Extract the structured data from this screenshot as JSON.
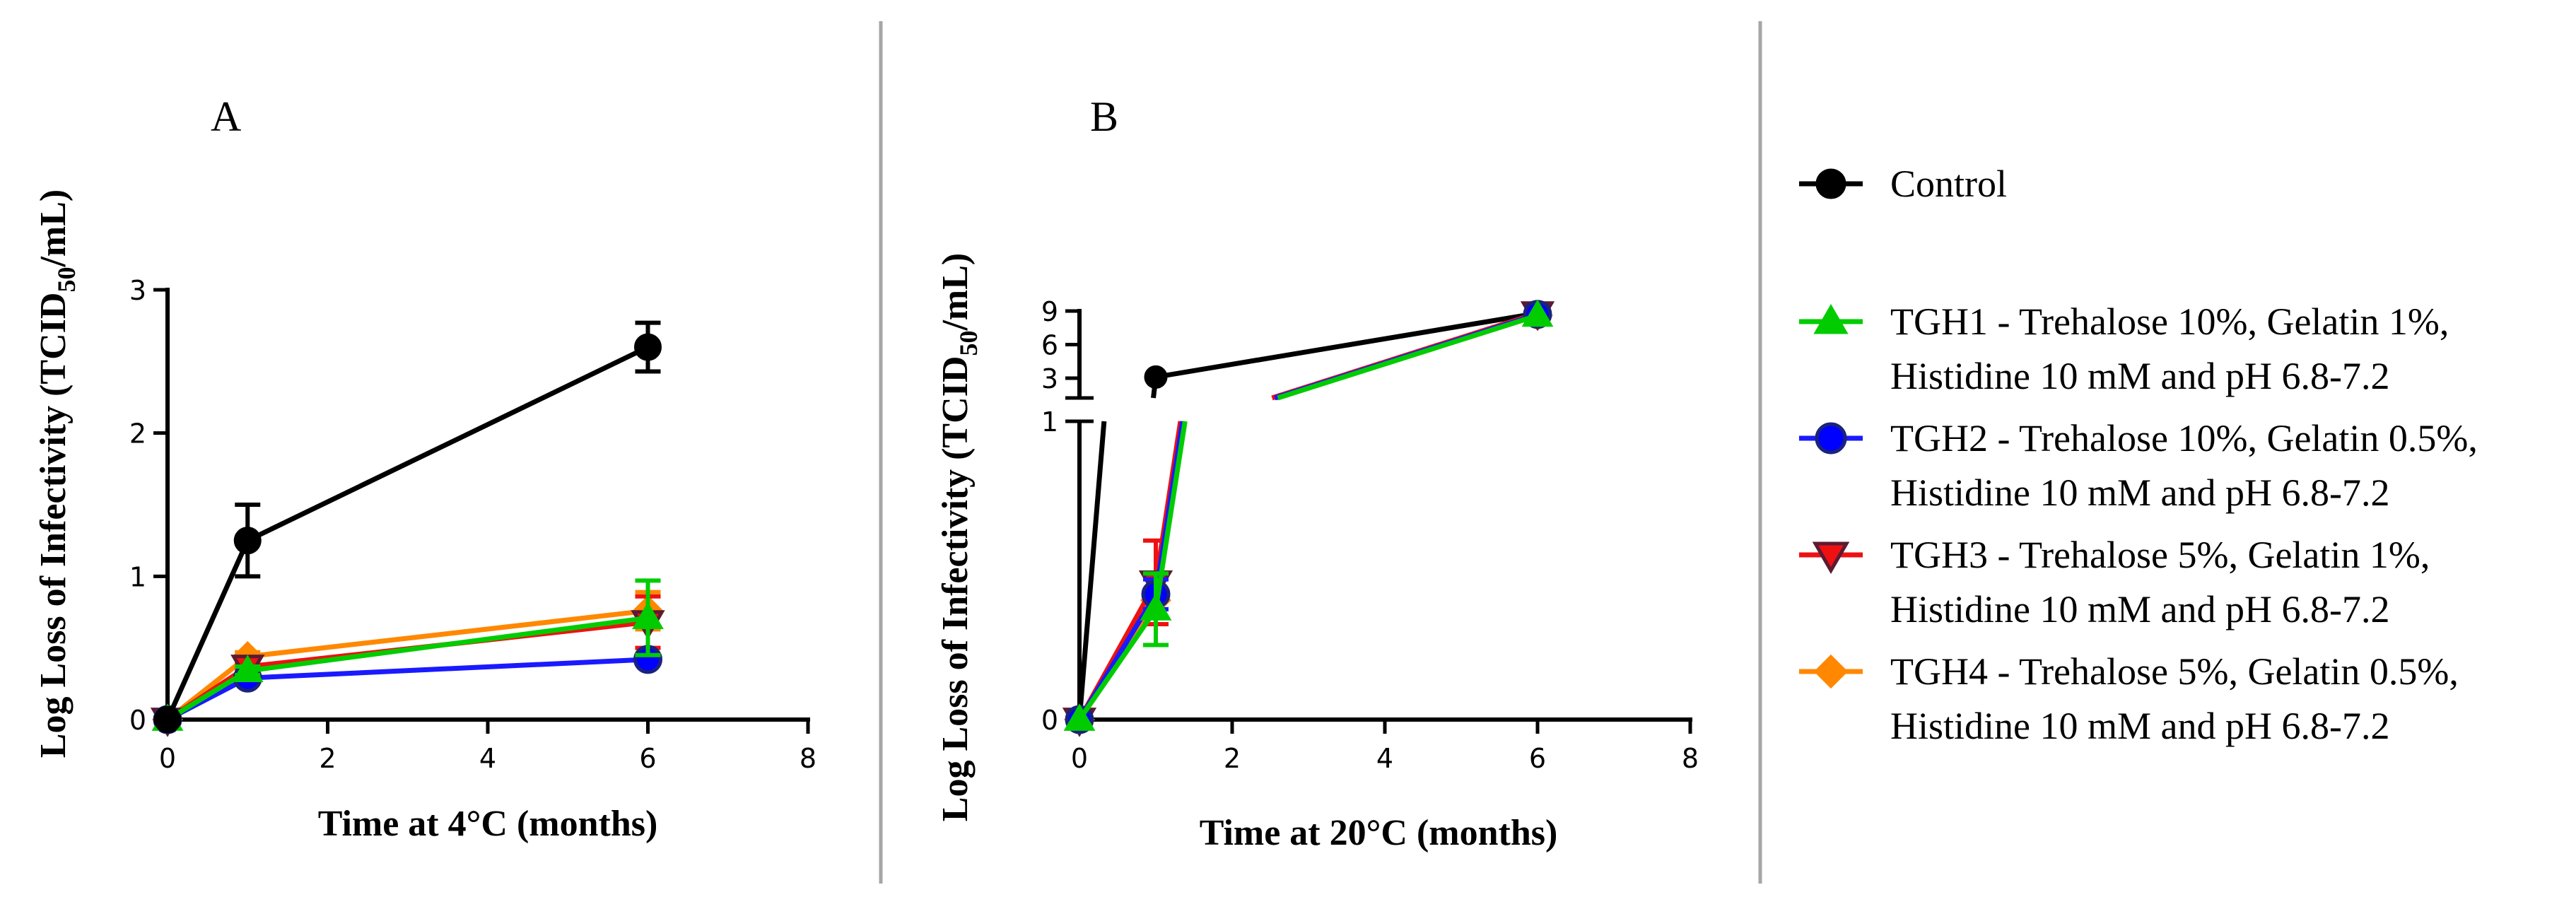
{
  "colors": {
    "control": "#000000",
    "tgh1": "#00cc00",
    "tgh2": "#1a1aff",
    "tgh3": "#ee1111",
    "tgh4": "#ff8800",
    "divider": "#a6a6a6",
    "tgh2_marker_fill": "#0000ff",
    "tgh2_marker_edge": "#1a237e",
    "tgh3_marker_edge": "#5c1a33"
  },
  "chart_data": [
    {
      "type": "line",
      "panel_label": "A",
      "xlabel": "Time at 4°C (months)",
      "ylabel": "Log Loss of Infectivity (TCID50/mL)",
      "xlim": [
        0,
        8
      ],
      "ylim": [
        0,
        3
      ],
      "x_ticks": [
        "0",
        "2",
        "4",
        "6",
        "8"
      ],
      "y_ticks": [
        "0",
        "1",
        "2",
        "3"
      ],
      "x": [
        0,
        1,
        6
      ],
      "series": [
        {
          "name": "Control",
          "values": [
            0,
            1.25,
            2.6
          ],
          "errors": [
            0,
            0.25,
            0.17
          ]
        },
        {
          "name": "TGH1",
          "values": [
            0,
            0.34,
            0.71
          ],
          "errors": [
            0,
            0.03,
            0.26
          ]
        },
        {
          "name": "TGH2",
          "values": [
            0,
            0.29,
            0.42
          ],
          "errors": [
            0,
            0.02,
            0.02
          ]
        },
        {
          "name": "TGH3",
          "values": [
            0,
            0.37,
            0.68
          ],
          "errors": [
            0,
            0.03,
            0.18
          ]
        },
        {
          "name": "TGH4",
          "values": [
            0,
            0.44,
            0.76
          ],
          "errors": [
            0,
            0.03,
            0.13
          ]
        }
      ]
    },
    {
      "type": "line",
      "panel_label": "B",
      "xlabel": "Time at 20°C (months)",
      "ylabel": "Log Loss of Infectivity (TCID50/mL)",
      "xlim": [
        0,
        8
      ],
      "y_axis_break": {
        "lower_range": [
          0,
          1
        ],
        "upper_range": [
          3,
          9
        ]
      },
      "x_ticks": [
        "0",
        "2",
        "4",
        "6",
        "8"
      ],
      "y_ticks_lower": [
        "0",
        "1"
      ],
      "y_ticks_upper": [
        "3",
        "6",
        "9"
      ],
      "x": [
        0,
        1,
        6
      ],
      "series": [
        {
          "name": "Control",
          "values": [
            0,
            3.1,
            8.8
          ],
          "errors": [
            0,
            0,
            0
          ]
        },
        {
          "name": "TGH1",
          "values": [
            0,
            0.37,
            8.6
          ],
          "errors": [
            0,
            0.12,
            0
          ]
        },
        {
          "name": "TGH2",
          "values": [
            0,
            0.42,
            8.7
          ],
          "errors": [
            0,
            0.05,
            0
          ]
        },
        {
          "name": "TGH3",
          "values": [
            0,
            0.46,
            8.8
          ],
          "errors": [
            0,
            0.14,
            0
          ]
        },
        {
          "name": "TGH4",
          "values": [
            0,
            0.4,
            8.6
          ],
          "errors": [
            0,
            0.03,
            0
          ]
        }
      ]
    }
  ],
  "legend": {
    "items": [
      {
        "key": "control",
        "marker": "circle",
        "line1": "Control",
        "line2": ""
      },
      {
        "key": "tgh1",
        "marker": "triangle-up",
        "line1": "TGH1 - Trehalose 10%, Gelatin 1%,",
        "line2": "Histidine 10 mM and pH 6.8-7.2"
      },
      {
        "key": "tgh2",
        "marker": "circle",
        "line1": "TGH2 - Trehalose 10%, Gelatin 0.5%,",
        "line2": "Histidine 10 mM and pH 6.8-7.2"
      },
      {
        "key": "tgh3",
        "marker": "triangle-down",
        "line1": "TGH3 - Trehalose 5%, Gelatin 1%,",
        "line2": "Histidine 10 mM and pH 6.8-7.2"
      },
      {
        "key": "tgh4",
        "marker": "diamond",
        "line1": "TGH4 - Trehalose 5%, Gelatin 0.5%,",
        "line2": "Histidine 10 mM and pH 6.8-7.2"
      }
    ]
  },
  "ylabel_parts": {
    "main": "Log Loss of Infectivity (TCID",
    "sub": "50",
    "tail": "/mL)"
  }
}
